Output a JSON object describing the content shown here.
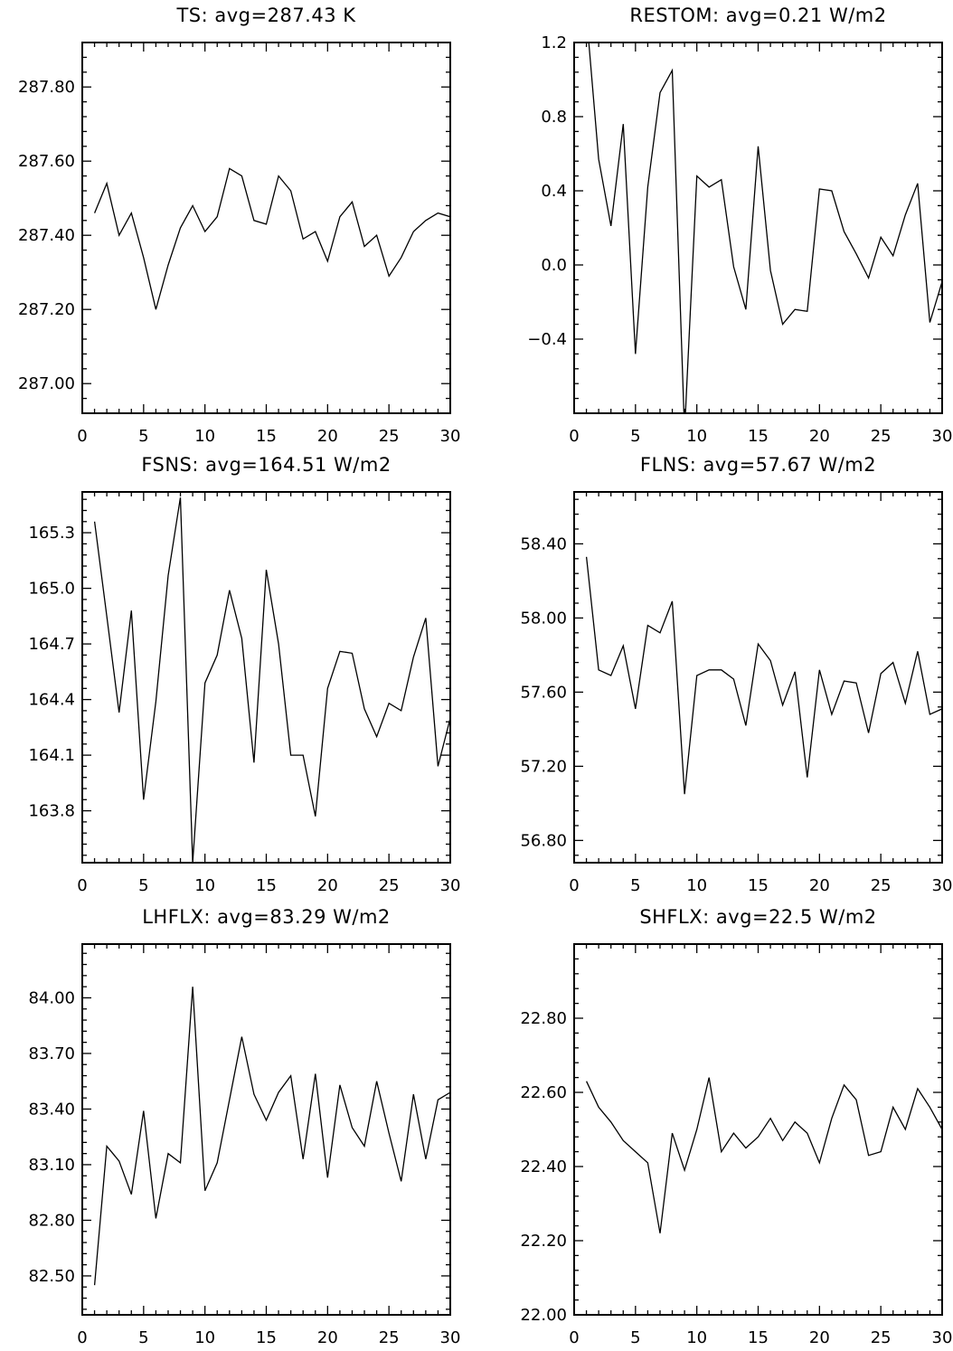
{
  "chart_data": [
    {
      "type": "line",
      "title": "TS: avg=287.43 K",
      "xlabel": "",
      "ylabel": "",
      "xlim": [
        0,
        30
      ],
      "ylim": [
        286.92,
        287.92
      ],
      "x_ticks": [
        "0",
        "5",
        "10",
        "15",
        "20",
        "25",
        "30"
      ],
      "y_ticks": [
        {
          "value": 287.0,
          "label": "287.00"
        },
        {
          "value": 287.2,
          "label": "287.20"
        },
        {
          "value": 287.4,
          "label": "287.40"
        },
        {
          "value": 287.6,
          "label": "287.60"
        },
        {
          "value": 287.8,
          "label": "287.80"
        }
      ],
      "x": [
        1,
        2,
        3,
        4,
        5,
        6,
        7,
        8,
        9,
        10,
        11,
        12,
        13,
        14,
        15,
        16,
        17,
        18,
        19,
        20,
        21,
        22,
        23,
        24,
        25,
        26,
        27,
        28,
        29,
        30
      ],
      "values": [
        287.46,
        287.54,
        287.4,
        287.46,
        287.34,
        287.2,
        287.32,
        287.42,
        287.48,
        287.41,
        287.45,
        287.58,
        287.56,
        287.44,
        287.43,
        287.56,
        287.52,
        287.39,
        287.41,
        287.33,
        287.45,
        287.49,
        287.37,
        287.4,
        287.29,
        287.34,
        287.41,
        287.44,
        287.46,
        287.45
      ]
    },
    {
      "type": "line",
      "title": "RESTOM: avg=0.21 W/m2",
      "xlabel": "",
      "ylabel": "",
      "xlim": [
        0,
        30
      ],
      "ylim": [
        -0.8,
        1.2
      ],
      "x_ticks": [
        "0",
        "5",
        "10",
        "15",
        "20",
        "25",
        "30"
      ],
      "y_ticks": [
        {
          "value": -0.4,
          "label": "−0.4"
        },
        {
          "value": 0.0,
          "label": "0.0"
        },
        {
          "value": 0.4,
          "label": "0.4"
        },
        {
          "value": 0.8,
          "label": "0.8"
        },
        {
          "value": 1.2,
          "label": "1.2"
        }
      ],
      "x": [
        1,
        2,
        3,
        4,
        5,
        6,
        7,
        8,
        9,
        10,
        11,
        12,
        13,
        14,
        15,
        16,
        17,
        18,
        19,
        20,
        21,
        22,
        23,
        24,
        25,
        26,
        27,
        28,
        29,
        30
      ],
      "values": [
        1.35,
        0.57,
        0.21,
        0.76,
        -0.48,
        0.42,
        0.93,
        1.05,
        -0.9,
        0.48,
        0.42,
        0.46,
        -0.01,
        -0.24,
        0.64,
        -0.03,
        -0.32,
        -0.24,
        -0.25,
        0.41,
        0.4,
        0.18,
        0.06,
        -0.07,
        0.15,
        0.05,
        0.27,
        0.44,
        -0.31,
        -0.09
      ]
    },
    {
      "type": "line",
      "title": "FSNS: avg=164.51 W/m2",
      "xlabel": "",
      "ylabel": "",
      "xlim": [
        0,
        30
      ],
      "ylim": [
        163.52,
        165.52
      ],
      "x_ticks": [
        "0",
        "5",
        "10",
        "15",
        "20",
        "25",
        "30"
      ],
      "y_ticks": [
        {
          "value": 163.8,
          "label": "163.8"
        },
        {
          "value": 164.1,
          "label": "164.1"
        },
        {
          "value": 164.4,
          "label": "164.4"
        },
        {
          "value": 164.7,
          "label": "164.7"
        },
        {
          "value": 165.0,
          "label": "165.0"
        },
        {
          "value": 165.3,
          "label": "165.3"
        }
      ],
      "x": [
        1,
        2,
        3,
        4,
        5,
        6,
        7,
        8,
        9,
        10,
        11,
        12,
        13,
        14,
        15,
        16,
        17,
        18,
        19,
        20,
        21,
        22,
        23,
        24,
        25,
        26,
        27,
        28,
        29,
        30
      ],
      "values": [
        165.36,
        164.85,
        164.33,
        164.88,
        163.86,
        164.39,
        165.07,
        165.49,
        163.52,
        164.49,
        164.64,
        164.99,
        164.73,
        164.06,
        165.1,
        164.7,
        164.1,
        164.1,
        163.77,
        164.46,
        164.66,
        164.65,
        164.35,
        164.2,
        164.38,
        164.34,
        164.63,
        164.84,
        164.04,
        164.3
      ]
    },
    {
      "type": "line",
      "title": "FLNS: avg=57.67 W/m2",
      "xlabel": "",
      "ylabel": "",
      "xlim": [
        0,
        30
      ],
      "ylim": [
        56.68,
        58.68
      ],
      "x_ticks": [
        "0",
        "5",
        "10",
        "15",
        "20",
        "25",
        "30"
      ],
      "y_ticks": [
        {
          "value": 56.8,
          "label": "56.80"
        },
        {
          "value": 57.2,
          "label": "57.20"
        },
        {
          "value": 57.6,
          "label": "57.60"
        },
        {
          "value": 58.0,
          "label": "58.00"
        },
        {
          "value": 58.4,
          "label": "58.40"
        }
      ],
      "x": [
        1,
        2,
        3,
        4,
        5,
        6,
        7,
        8,
        9,
        10,
        11,
        12,
        13,
        14,
        15,
        16,
        17,
        18,
        19,
        20,
        21,
        22,
        23,
        24,
        25,
        26,
        27,
        28,
        29,
        30
      ],
      "values": [
        58.33,
        57.72,
        57.69,
        57.85,
        57.51,
        57.96,
        57.92,
        58.09,
        57.05,
        57.69,
        57.72,
        57.72,
        57.67,
        57.42,
        57.86,
        57.77,
        57.53,
        57.71,
        57.14,
        57.72,
        57.48,
        57.66,
        57.65,
        57.38,
        57.7,
        57.76,
        57.54,
        57.82,
        57.48,
        57.51
      ]
    },
    {
      "type": "line",
      "title": "LHFLX: avg=83.29 W/m2",
      "xlabel": "",
      "ylabel": "",
      "xlim": [
        0,
        30
      ],
      "ylim": [
        82.29,
        84.29
      ],
      "x_ticks": [
        "0",
        "5",
        "10",
        "15",
        "20",
        "25",
        "30"
      ],
      "y_ticks": [
        {
          "value": 82.5,
          "label": "82.50"
        },
        {
          "value": 82.8,
          "label": "82.80"
        },
        {
          "value": 83.1,
          "label": "83.10"
        },
        {
          "value": 83.4,
          "label": "83.40"
        },
        {
          "value": 83.7,
          "label": "83.70"
        },
        {
          "value": 84.0,
          "label": "84.00"
        }
      ],
      "x": [
        1,
        2,
        3,
        4,
        5,
        6,
        7,
        8,
        9,
        10,
        11,
        12,
        13,
        14,
        15,
        16,
        17,
        18,
        19,
        20,
        21,
        22,
        23,
        24,
        25,
        26,
        27,
        28,
        29,
        30
      ],
      "values": [
        82.45,
        83.2,
        83.12,
        82.94,
        83.39,
        82.81,
        83.16,
        83.11,
        84.06,
        82.96,
        83.11,
        83.45,
        83.79,
        83.48,
        83.34,
        83.49,
        83.58,
        83.13,
        83.59,
        83.03,
        83.53,
        83.3,
        83.2,
        83.55,
        83.27,
        83.01,
        83.48,
        83.13,
        83.45,
        83.49
      ]
    },
    {
      "type": "line",
      "title": "SHFLX: avg=22.5 W/m2",
      "xlabel": "",
      "ylabel": "",
      "xlim": [
        0,
        30
      ],
      "ylim": [
        22.0,
        23.0
      ],
      "x_ticks": [
        "0",
        "5",
        "10",
        "15",
        "20",
        "25",
        "30"
      ],
      "y_ticks": [
        {
          "value": 22.0,
          "label": "22.00"
        },
        {
          "value": 22.2,
          "label": "22.20"
        },
        {
          "value": 22.4,
          "label": "22.40"
        },
        {
          "value": 22.6,
          "label": "22.60"
        },
        {
          "value": 22.8,
          "label": "22.80"
        }
      ],
      "x": [
        1,
        2,
        3,
        4,
        5,
        6,
        7,
        8,
        9,
        10,
        11,
        12,
        13,
        14,
        15,
        16,
        17,
        18,
        19,
        20,
        21,
        22,
        23,
        24,
        25,
        26,
        27,
        28,
        29,
        30
      ],
      "values": [
        22.63,
        22.56,
        22.52,
        22.47,
        22.44,
        22.41,
        22.22,
        22.49,
        22.39,
        22.5,
        22.64,
        22.44,
        22.49,
        22.45,
        22.48,
        22.53,
        22.47,
        22.52,
        22.49,
        22.41,
        22.53,
        22.62,
        22.58,
        22.43,
        22.44,
        22.56,
        22.5,
        22.61,
        22.56,
        22.5
      ]
    }
  ]
}
